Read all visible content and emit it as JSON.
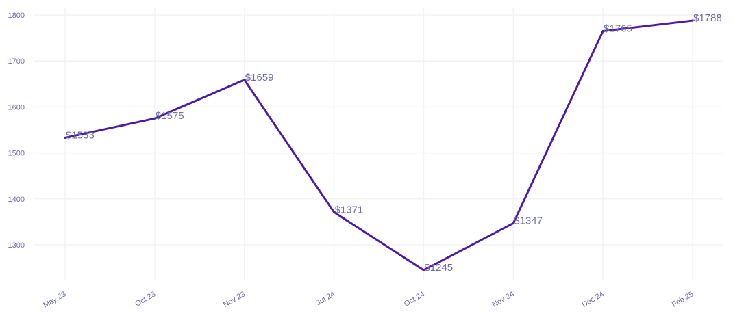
{
  "chart_data": {
    "type": "line",
    "title": "",
    "xlabel": "",
    "ylabel": "",
    "categories": [
      "May 23",
      "Oct 23",
      "Nov 23",
      "Jul 24",
      "Oct 24",
      "Nov 24",
      "Dec 24",
      "Feb 25"
    ],
    "series": [
      {
        "values": [
          1533,
          1575,
          1659,
          1371,
          1245,
          1347,
          1765,
          1788
        ],
        "labels": [
          "$1533",
          "$1575",
          "$1659",
          "$1371",
          "$1245",
          "$1347",
          "$1765",
          "$1788"
        ]
      }
    ],
    "y_ticks": [
      "1300",
      "1400",
      "1500",
      "1600",
      "1700",
      "1800"
    ],
    "ylim": [
      1218,
      1813
    ],
    "grid": true,
    "legend": "none",
    "colors": {
      "line": "#4a1aa8",
      "grid": "#f3f3f7",
      "text": "#6e6aa8"
    }
  }
}
